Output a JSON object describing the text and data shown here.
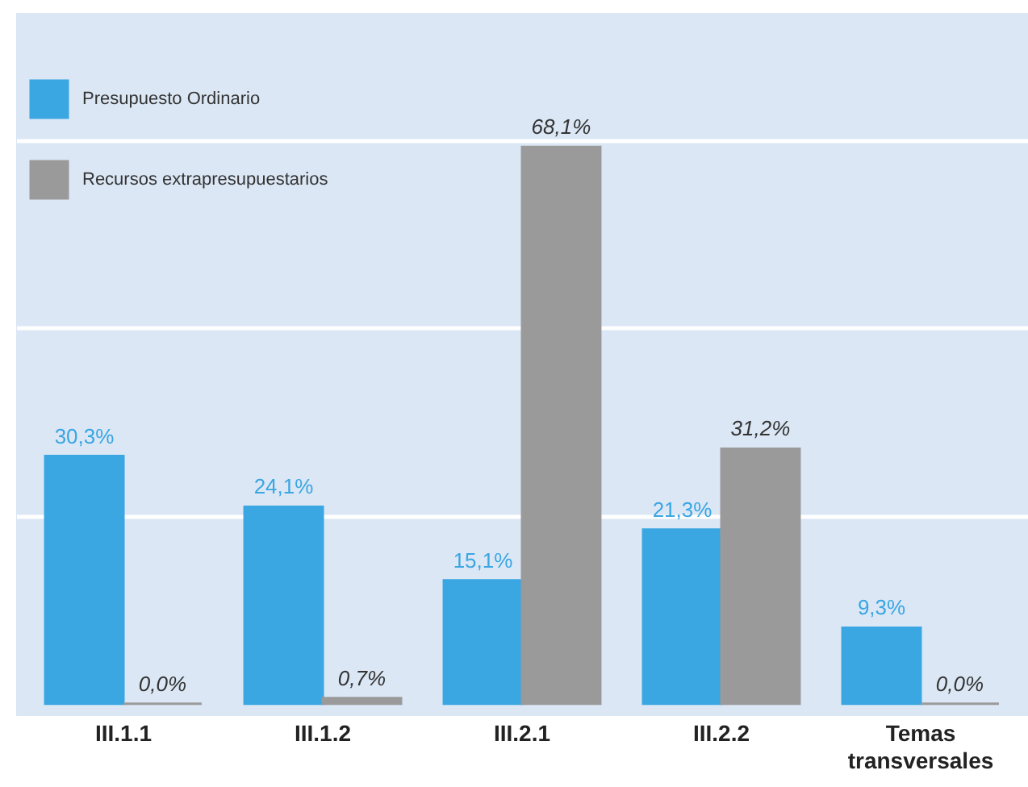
{
  "chart_data": {
    "type": "bar",
    "categories": [
      "III.1.1",
      "III.1.2",
      "III.2.1",
      "III.2.2",
      "Temas transversales"
    ],
    "series": [
      {
        "name": "Presupuesto Ordinario",
        "color": "#3aa6e2",
        "values": [
          30.3,
          24.1,
          15.1,
          21.3,
          9.3
        ],
        "value_labels": [
          "30,3%",
          "24,1%",
          "15,1%",
          "21,3%",
          "9,3%"
        ]
      },
      {
        "name": "Recursos extrapresupuestarios",
        "color": "#9a9a9a",
        "values": [
          0.0,
          0.7,
          68.1,
          31.2,
          0.0
        ],
        "value_labels": [
          "0,0%",
          "0,7%",
          "68,1%",
          "31,2%",
          "0,0%"
        ]
      }
    ],
    "ylim": [
      -1.5,
      84.5
    ],
    "yticks": [
      {
        "value": 23,
        "label": null
      },
      {
        "value": 46,
        "label": null
      },
      {
        "value": 69,
        "label": null
      }
    ],
    "tick_labels": "x",
    "grid": "y",
    "legend": "top left"
  }
}
